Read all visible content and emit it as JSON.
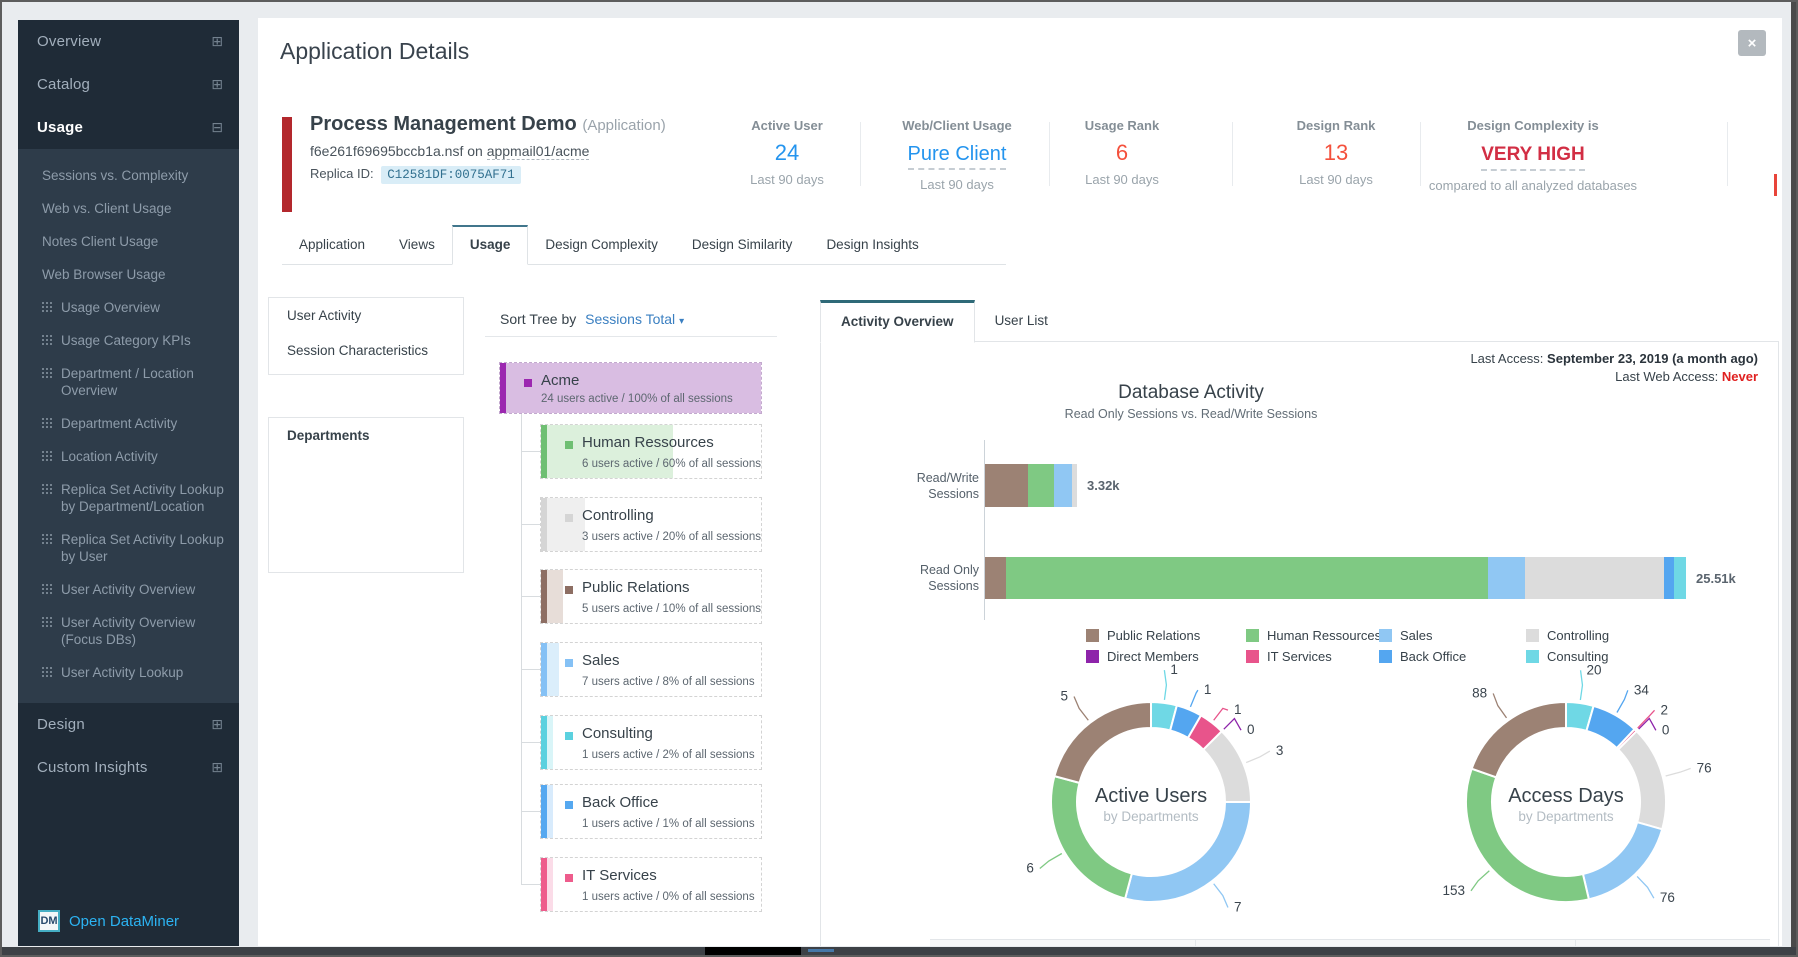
{
  "header": {
    "title": "Application Details",
    "close_icon": "×"
  },
  "sidebar": {
    "sections": [
      {
        "label": "Overview",
        "state": "collapsed"
      },
      {
        "label": "Catalog",
        "state": "collapsed"
      },
      {
        "label": "Usage",
        "state": "expanded",
        "items": [
          {
            "label": "Sessions vs. Complexity",
            "icon": false
          },
          {
            "label": "Web vs. Client Usage",
            "icon": false
          },
          {
            "label": "Notes Client Usage",
            "icon": false
          },
          {
            "label": "Web Browser Usage",
            "icon": false
          },
          {
            "label": "Usage Overview",
            "icon": true
          },
          {
            "label": "Usage Category KPIs",
            "icon": true
          },
          {
            "label": "Department / Location Overview",
            "icon": true
          },
          {
            "label": "Department Activity",
            "icon": true
          },
          {
            "label": "Location Activity",
            "icon": true
          },
          {
            "label": "Replica Set Activity Lookup by Department/Location",
            "icon": true
          },
          {
            "label": "Replica Set Activity Lookup by User",
            "icon": true
          },
          {
            "label": "User Activity Overview",
            "icon": true
          },
          {
            "label": "User Activity Overview (Focus DBs)",
            "icon": true
          },
          {
            "label": "User Activity Lookup",
            "icon": true
          }
        ]
      },
      {
        "label": "Design",
        "state": "collapsed"
      },
      {
        "label": "Custom Insights",
        "state": "collapsed"
      }
    ],
    "logo": {
      "badge": "DM",
      "label": "Open DataMiner"
    }
  },
  "app_info": {
    "name": "Process Management Demo",
    "type": "(Application)",
    "file_prefix": "f6e261f69695bccb1a.nsf on ",
    "file_server": "appmail01/acme",
    "replica_label": "Replica ID:",
    "replica_id": "C12581DF:0075AF71"
  },
  "stats": [
    {
      "label": "Active User",
      "value": "24",
      "sub": "Last 90 days",
      "value_color": "#2494ee",
      "underline": false,
      "bold": false
    },
    {
      "label": "Web/Client Usage",
      "value": "Pure Client",
      "sub": "Last 90 days",
      "value_color": "#2494ee",
      "underline": true,
      "bold": false
    },
    {
      "label": "Usage Rank",
      "value": "6",
      "sub": "Last 90 days",
      "value_color": "#f4503c",
      "underline": false,
      "bold": false
    },
    {
      "label": "Design Rank",
      "value": "13",
      "sub": "Last 90 days",
      "value_color": "#f4503c",
      "underline": false,
      "bold": false
    },
    {
      "label": "Design Complexity is",
      "value": "VERY HIGH",
      "sub": "compared to all analyzed databases",
      "value_color": "#d22e44",
      "underline": true,
      "bold": true
    }
  ],
  "tabs": [
    {
      "label": "Application",
      "active": false
    },
    {
      "label": "Views",
      "active": false
    },
    {
      "label": "Usage",
      "active": true
    },
    {
      "label": "Design Complexity",
      "active": false
    },
    {
      "label": "Design Similarity",
      "active": false
    },
    {
      "label": "Design Insights",
      "active": false
    }
  ],
  "subnav": {
    "group1": [
      "User Activity",
      "Session Characteristics"
    ],
    "group2": [
      "Departments"
    ],
    "active": "Departments"
  },
  "sort": {
    "label": "Sort Tree by",
    "value": "Sessions Total",
    "caret": "▾"
  },
  "tree": {
    "root": {
      "name": "Acme",
      "sub": "24 users active / 100% of all sessions",
      "color": "#9c27b0",
      "bg": "#d9bde2",
      "fill_pct": 100
    },
    "children": [
      {
        "name": "Human Ressources",
        "sub": "6 users active / 60% of all sessions",
        "color": "#6fbf73",
        "bg": "#dcf0dc",
        "fill_pct": 60
      },
      {
        "name": "Controlling",
        "sub": "3 users active / 20% of all sessions",
        "color": "#d5d5d5",
        "bg": "#efefef",
        "fill_pct": 20
      },
      {
        "name": "Public Relations",
        "sub": "5 users active / 10% of all sessions",
        "color": "#8d6e63",
        "bg": "#e7ddd8",
        "fill_pct": 10
      },
      {
        "name": "Sales",
        "sub": "7 users active / 8% of all sessions",
        "color": "#85c1f5",
        "bg": "#dbeefb",
        "fill_pct": 8
      },
      {
        "name": "Consulting",
        "sub": "1 users active / 2% of all sessions",
        "color": "#5bd1df",
        "bg": "#d9f5f8",
        "fill_pct": 2
      },
      {
        "name": "Back Office",
        "sub": "1 users active / 1% of all sessions",
        "color": "#55a8f0",
        "bg": "#d8ebfc",
        "fill_pct": 1
      },
      {
        "name": "IT Services",
        "sub": "1 users active / 0% of all sessions",
        "color": "#ee5c8c",
        "bg": "#fbdce8",
        "fill_pct": 0
      }
    ]
  },
  "panel": {
    "tabs": [
      {
        "label": "Activity Overview",
        "active": true
      },
      {
        "label": "User List",
        "active": false
      }
    ],
    "last_access_label": "Last Access:",
    "last_access_value": "September 23, 2019 (a month ago)",
    "last_web_label": "Last Web Access:",
    "last_web_value": "Never"
  },
  "dept_colors": {
    "Public Relations": "#9c8274",
    "Direct Members": "#8e24aa",
    "Human Ressources": "#7fc983",
    "IT Services": "#e8548b",
    "Sales": "#90c7f3",
    "Back Office": "#54a6f0",
    "Controlling": "#dcdcdc",
    "Consulting": "#6fd8e5"
  },
  "chart_data": [
    {
      "type": "bar",
      "orientation": "horizontal",
      "title": "Database Activity",
      "subtitle": "Read Only Sessions vs. Read/Write Sessions",
      "categories": [
        "Read/Write Sessions",
        "Read Only Sessions"
      ],
      "totals": [
        "3.32k",
        "25.51k"
      ],
      "bars": [
        {
          "category": "Read/Write Sessions",
          "total_label": "3.32k",
          "segments": [
            {
              "name": "Public Relations",
              "value": 1570
            },
            {
              "name": "Human Ressources",
              "value": 930
            },
            {
              "name": "Sales",
              "value": 640
            },
            {
              "name": "Controlling",
              "value": 180
            }
          ]
        },
        {
          "category": "Read Only Sessions",
          "total_label": "25.51k",
          "segments": [
            {
              "name": "Public Relations",
              "value": 760
            },
            {
              "name": "Human Ressources",
              "value": 17550
            },
            {
              "name": "Sales",
              "value": 1340
            },
            {
              "name": "Controlling",
              "value": 5050
            },
            {
              "name": "Back Office",
              "value": 360
            },
            {
              "name": "Consulting",
              "value": 450
            }
          ]
        }
      ],
      "legend": [
        [
          "Public Relations",
          "Direct Members"
        ],
        [
          "Human Ressources",
          "IT Services"
        ],
        [
          "Sales",
          "Back Office"
        ],
        [
          "Controlling",
          "Consulting"
        ]
      ],
      "legend_position": "bottom",
      "grid": false
    },
    {
      "type": "pie",
      "title": "Active Users",
      "subtitle": "by Departments",
      "labels": [
        "Consulting",
        "Back Office",
        "IT Services",
        "Direct Members",
        "Controlling",
        "Sales",
        "Human Ressources",
        "Public Relations"
      ],
      "values": [
        1,
        1,
        1,
        0,
        3,
        7,
        6,
        5
      ]
    },
    {
      "type": "pie",
      "title": "Access Days",
      "subtitle": "by Departments",
      "labels": [
        "Consulting",
        "Back Office",
        "IT Services",
        "Direct Members",
        "Controlling",
        "Sales",
        "Human Ressources",
        "Public Relations"
      ],
      "values": [
        20,
        34,
        2,
        0,
        76,
        76,
        153,
        88
      ]
    }
  ]
}
